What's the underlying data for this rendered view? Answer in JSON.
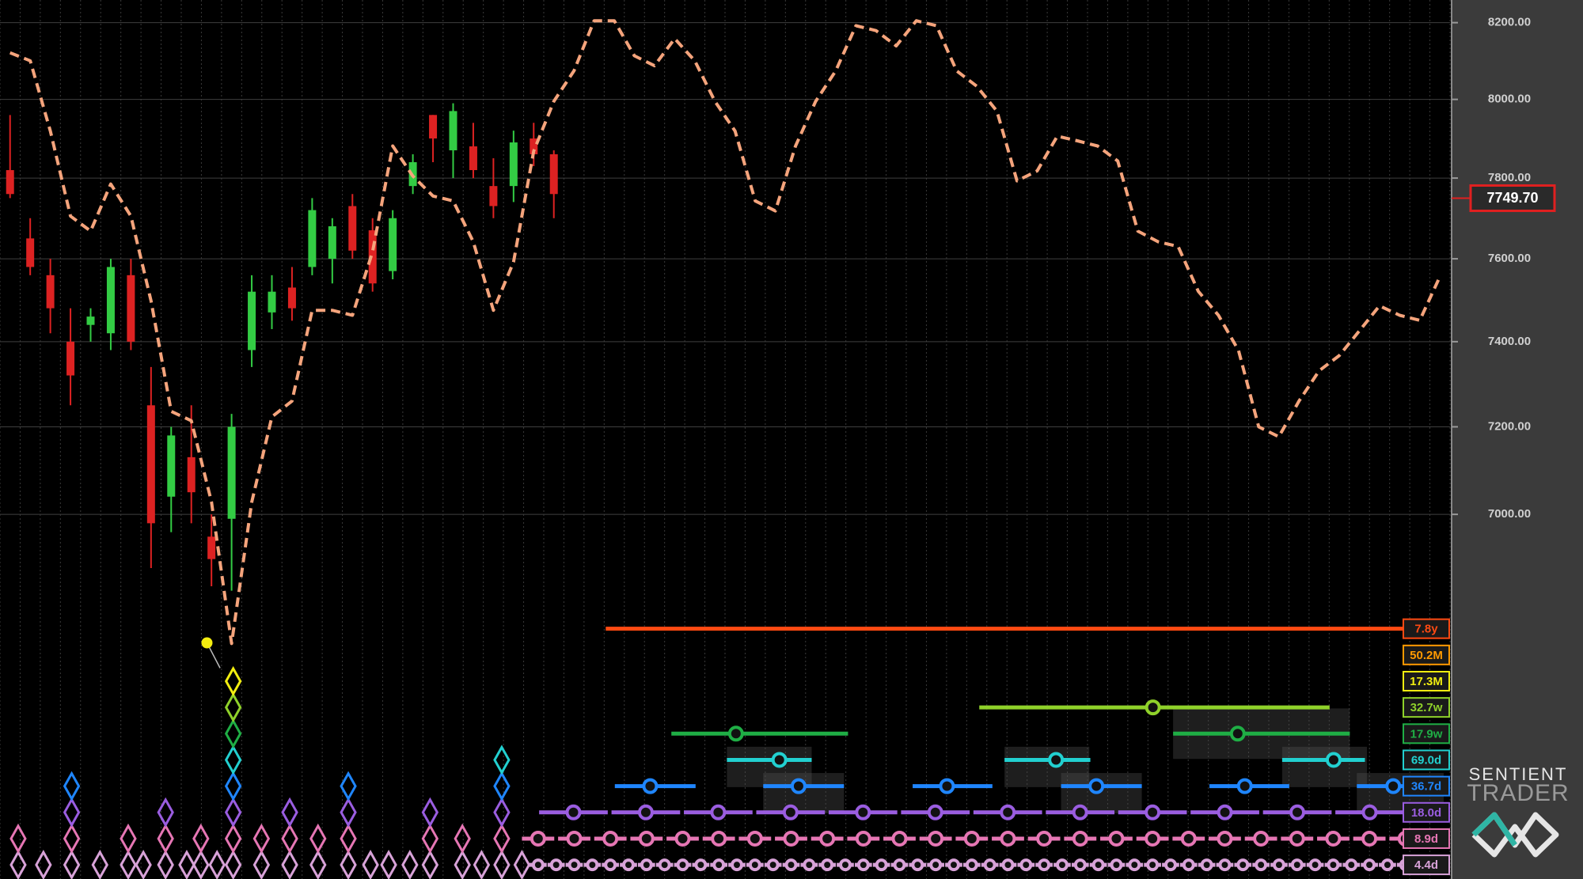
{
  "chart_data": {
    "type": "line",
    "log_scale": true,
    "grid": true,
    "ylim": [
      6225,
      8260
    ],
    "yticks": [
      {
        "value": 7000,
        "label": "7000.00"
      },
      {
        "value": 7200,
        "label": "7200.00"
      },
      {
        "value": 7400,
        "label": "7400.00"
      },
      {
        "value": 7600,
        "label": "7600.00"
      },
      {
        "value": 7800,
        "label": "7800.00"
      },
      {
        "value": 8000,
        "label": "8000.00"
      },
      {
        "value": 8200,
        "label": "8200.00"
      }
    ],
    "categories": [
      null,
      null,
      null,
      null,
      null,
      null,
      null,
      null,
      null,
      null,
      null,
      null,
      null,
      null,
      null,
      null,
      null,
      null,
      null,
      null,
      null,
      null,
      null,
      null,
      null,
      null,
      null,
      null,
      null,
      null,
      null,
      null,
      null,
      null,
      null,
      null,
      null,
      null,
      null,
      null,
      null,
      null,
      null,
      null,
      null,
      null,
      null,
      null,
      null,
      null,
      null,
      null,
      null,
      null,
      null,
      null,
      null,
      null,
      null,
      null,
      null,
      null,
      null,
      null,
      null,
      null,
      null,
      null,
      null,
      null,
      null,
      null
    ],
    "series": [
      {
        "color": "#f5a47c",
        "dashed": true,
        "values": [
          8121,
          8100,
          7919,
          7705,
          7668,
          7785,
          7705,
          7498,
          7236,
          7214,
          7028,
          6715,
          7028,
          7223,
          7260,
          7475,
          7475,
          7463,
          7617,
          7881,
          7805,
          7755,
          7743,
          7642,
          7475,
          7592,
          7868,
          7995,
          8074,
          8205,
          8205,
          8113,
          8087,
          8158,
          8100,
          7995,
          7919,
          7743,
          7718,
          7881,
          7995,
          8074,
          8192,
          8179,
          8139,
          8205,
          8192,
          8074,
          8034,
          7970,
          7793,
          7818,
          7906,
          7894,
          7881,
          7843,
          7668,
          7642,
          7630,
          7521,
          7463,
          7379,
          7200,
          7177,
          7260,
          7331,
          7367,
          7426,
          7486,
          7463,
          7451,
          7557
        ]
      }
    ],
    "candles": {
      "up_color": "#33cc44",
      "down_color": "#dd2222",
      "open": [
        7820,
        7650,
        7560,
        7400,
        7440,
        7420,
        7560,
        7250,
        7040,
        7130,
        6950,
        6990,
        7380,
        7470,
        7530,
        7580,
        7600,
        7730,
        7670,
        7570,
        7780,
        7960,
        7870,
        7880,
        7780,
        7780,
        7900,
        7860
      ],
      "high": [
        7960,
        7700,
        7600,
        7480,
        7480,
        7600,
        7600,
        7340,
        7200,
        7250,
        7000,
        7230,
        7560,
        7560,
        7580,
        7750,
        7700,
        7760,
        7700,
        7720,
        7860,
        7960,
        7990,
        7940,
        7850,
        7920,
        7940,
        7870
      ],
      "low": [
        7750,
        7560,
        7420,
        7250,
        7400,
        7380,
        7380,
        6880,
        6960,
        6980,
        6840,
        6830,
        7340,
        7430,
        7450,
        7560,
        7540,
        7600,
        7520,
        7550,
        7760,
        7840,
        7800,
        7800,
        7700,
        7740,
        7830,
        7700
      ],
      "close": [
        7760,
        7580,
        7480,
        7320,
        7460,
        7580,
        7400,
        6980,
        7180,
        7050,
        6900,
        7200,
        7520,
        7520,
        7480,
        7720,
        7680,
        7620,
        7540,
        7700,
        7840,
        7900,
        7970,
        7820,
        7730,
        7890,
        7860,
        7760
      ]
    },
    "last_price": {
      "value": 7749.7,
      "label": "7749.70"
    },
    "cycles": [
      {
        "label": "7.8y",
        "color": "#ff4a12"
      },
      {
        "label": "50.2M",
        "color": "#ff9a00"
      },
      {
        "label": "17.3M",
        "color": "#f2ee10"
      },
      {
        "label": "32.7w",
        "color": "#8fd12a"
      },
      {
        "label": "17.9w",
        "color": "#1fae45"
      },
      {
        "label": "69.0d",
        "color": "#22d0d0"
      },
      {
        "label": "36.7d",
        "color": "#1f86ff"
      },
      {
        "label": "18.0d",
        "color": "#9a5de0"
      },
      {
        "label": "8.9d",
        "color": "#e676b4"
      },
      {
        "label": "4.4d",
        "color": "#d8a2d8"
      }
    ]
  },
  "brand": [
    "SENTIENT",
    "TRADER"
  ]
}
